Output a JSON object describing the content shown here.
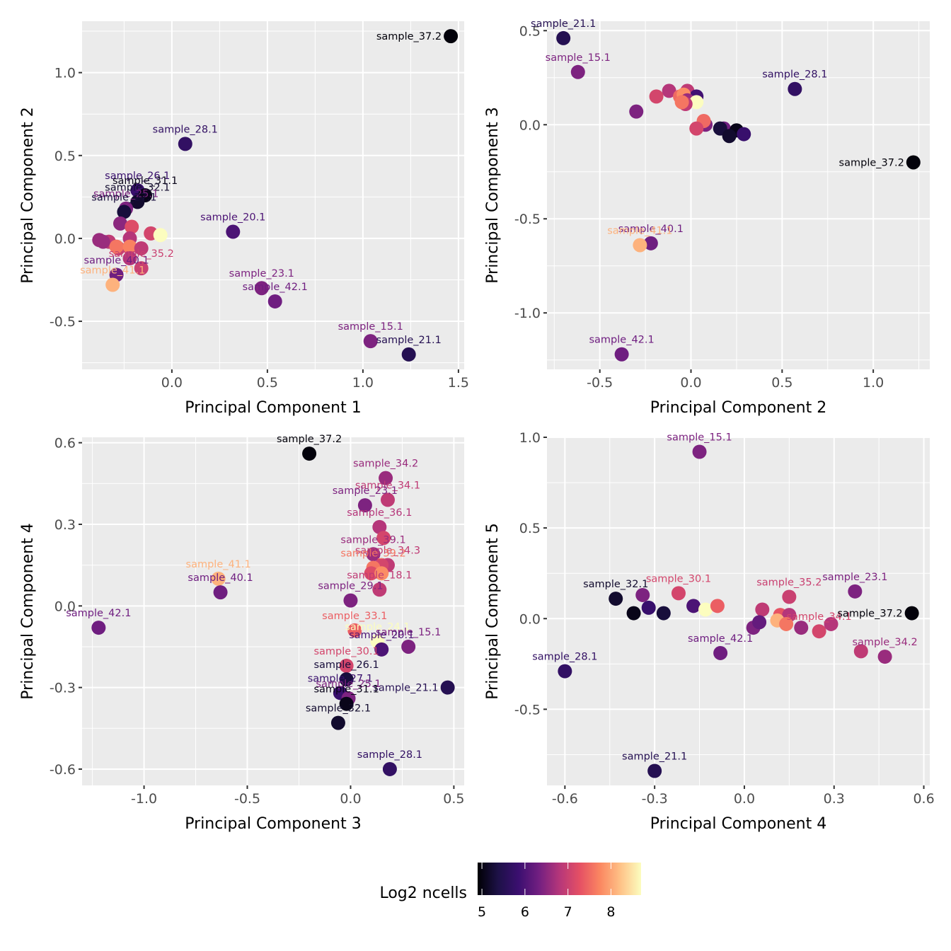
{
  "figure": {
    "legend": {
      "title": "Log2 ncells",
      "type": "colorbar",
      "palette": "magma",
      "range": [
        4.9,
        8.7
      ],
      "breaks": [
        5,
        6,
        7,
        8
      ],
      "break_labels": [
        "5",
        "6",
        "7",
        "8"
      ],
      "placement": "bottom",
      "stops": [
        "#000004",
        "#1d1147",
        "#3b0f70",
        "#721f81",
        "#b5367a",
        "#e55064",
        "#fb8761",
        "#fec287",
        "#fcfdbf"
      ]
    },
    "theme": {
      "panel_background": "#ebebeb",
      "grid_color": "#ffffff",
      "tick_color": "#333333"
    }
  },
  "chart_data": [
    {
      "type": "scatter",
      "title": "",
      "xlabel": "Principal Component 1",
      "ylabel": "Principal Component 2",
      "xlim": [
        -0.47,
        1.53
      ],
      "ylim": [
        -0.79,
        1.31
      ],
      "xticks": [
        0.0,
        0.5,
        1.0,
        1.5
      ],
      "xtick_labels": [
        "0.0",
        "0.5",
        "1.0",
        "1.5"
      ],
      "yticks": [
        -0.5,
        0.0,
        0.5,
        1.0
      ],
      "ytick_labels": [
        "-0.5",
        "0.0",
        "0.5",
        "1.0"
      ],
      "grid": true,
      "points": [
        {
          "x": 1.46,
          "y": 1.22,
          "c": 4.95,
          "label": "sample_37.2"
        },
        {
          "x": 0.07,
          "y": 0.57,
          "c": 5.7,
          "label": "sample_28.1"
        },
        {
          "x": -0.18,
          "y": 0.29,
          "c": 5.8,
          "label": "sample_26.1"
        },
        {
          "x": -0.14,
          "y": 0.26,
          "c": 5.05,
          "label": "sample_31.1"
        },
        {
          "x": -0.18,
          "y": 0.22,
          "c": 5.2,
          "label": "sample_32.1"
        },
        {
          "x": -0.24,
          "y": 0.18,
          "c": 6.4,
          "label": "sample_25.1"
        },
        {
          "x": -0.25,
          "y": 0.16,
          "c": 5.3,
          "label": "sample_27.1"
        },
        {
          "x": -0.27,
          "y": 0.09,
          "c": 6.5,
          "label": ""
        },
        {
          "x": -0.21,
          "y": 0.07,
          "c": 7.2,
          "label": ""
        },
        {
          "x": -0.11,
          "y": 0.03,
          "c": 7.1,
          "label": ""
        },
        {
          "x": -0.06,
          "y": 0.02,
          "c": 8.7,
          "label": ""
        },
        {
          "x": 0.32,
          "y": 0.04,
          "c": 6.0,
          "label": "sample_20.1"
        },
        {
          "x": -0.38,
          "y": -0.01,
          "c": 6.6,
          "label": ""
        },
        {
          "x": -0.33,
          "y": -0.02,
          "c": 6.9,
          "label": ""
        },
        {
          "x": -0.36,
          "y": -0.02,
          "c": 6.6,
          "label": ""
        },
        {
          "x": -0.22,
          "y": 0.0,
          "c": 6.8,
          "label": ""
        },
        {
          "x": -0.28,
          "y": -0.06,
          "c": 7.0,
          "label": ""
        },
        {
          "x": -0.29,
          "y": -0.05,
          "c": 7.6,
          "label": ""
        },
        {
          "x": -0.22,
          "y": -0.05,
          "c": 7.7,
          "label": ""
        },
        {
          "x": -0.16,
          "y": -0.06,
          "c": 6.9,
          "label": ""
        },
        {
          "x": -0.22,
          "y": -0.12,
          "c": 6.8,
          "label": ""
        },
        {
          "x": -0.29,
          "y": -0.22,
          "c": 6.3,
          "label": "sample_40.1"
        },
        {
          "x": -0.16,
          "y": -0.18,
          "c": 7.0,
          "label": "sample_35.2"
        },
        {
          "x": -0.31,
          "y": -0.28,
          "c": 8.1,
          "label": "sample_41.1"
        },
        {
          "x": 0.47,
          "y": -0.3,
          "c": 6.4,
          "label": "sample_23.1"
        },
        {
          "x": 0.54,
          "y": -0.38,
          "c": 6.3,
          "label": "sample_42.1"
        },
        {
          "x": 1.04,
          "y": -0.62,
          "c": 6.4,
          "label": "sample_15.1"
        },
        {
          "x": 1.24,
          "y": -0.7,
          "c": 5.5,
          "label": "sample_21.1"
        }
      ]
    },
    {
      "type": "scatter",
      "title": "",
      "xlabel": "Principal Component 2",
      "ylabel": "Principal Component 3",
      "xlim": [
        -0.79,
        1.31
      ],
      "ylim": [
        -1.3,
        0.55
      ],
      "xticks": [
        -0.5,
        0.0,
        0.5,
        1.0
      ],
      "xtick_labels": [
        "-0.5",
        "0.0",
        "0.5",
        "1.0"
      ],
      "yticks": [
        -1.0,
        -0.5,
        0.0,
        0.5
      ],
      "ytick_labels": [
        "-1.0",
        "-0.5",
        "0.0",
        "0.5"
      ],
      "grid": true,
      "points": [
        {
          "x": -0.7,
          "y": 0.46,
          "c": 5.5,
          "label": "sample_21.1"
        },
        {
          "x": -0.62,
          "y": 0.28,
          "c": 6.4,
          "label": "sample_15.1"
        },
        {
          "x": 0.57,
          "y": 0.19,
          "c": 5.7,
          "label": "sample_28.1"
        },
        {
          "x": -0.12,
          "y": 0.18,
          "c": 6.8,
          "label": ""
        },
        {
          "x": -0.19,
          "y": 0.15,
          "c": 7.1,
          "label": ""
        },
        {
          "x": -0.02,
          "y": 0.18,
          "c": 6.9,
          "label": ""
        },
        {
          "x": 0.03,
          "y": 0.15,
          "c": 5.9,
          "label": ""
        },
        {
          "x": -0.06,
          "y": 0.15,
          "c": 7.5,
          "label": ""
        },
        {
          "x": -0.04,
          "y": 0.16,
          "c": 7.8,
          "label": ""
        },
        {
          "x": -0.02,
          "y": 0.13,
          "c": 6.6,
          "label": ""
        },
        {
          "x": 0.03,
          "y": 0.12,
          "c": 8.7,
          "label": ""
        },
        {
          "x": -0.03,
          "y": 0.11,
          "c": 6.9,
          "label": ""
        },
        {
          "x": -0.05,
          "y": 0.12,
          "c": 7.6,
          "label": ""
        },
        {
          "x": -0.3,
          "y": 0.07,
          "c": 6.4,
          "label": ""
        },
        {
          "x": 0.08,
          "y": 0.0,
          "c": 6.4,
          "label": ""
        },
        {
          "x": 0.07,
          "y": 0.02,
          "c": 7.5,
          "label": ""
        },
        {
          "x": 0.03,
          "y": -0.02,
          "c": 7.1,
          "label": ""
        },
        {
          "x": 0.18,
          "y": -0.02,
          "c": 6.3,
          "label": ""
        },
        {
          "x": 0.16,
          "y": -0.02,
          "c": 5.3,
          "label": ""
        },
        {
          "x": 0.25,
          "y": -0.03,
          "c": 5.05,
          "label": ""
        },
        {
          "x": 0.21,
          "y": -0.06,
          "c": 5.2,
          "label": ""
        },
        {
          "x": 0.29,
          "y": -0.05,
          "c": 5.8,
          "label": ""
        },
        {
          "x": 1.22,
          "y": -0.2,
          "c": 4.95,
          "label": "sample_37.2"
        },
        {
          "x": -0.22,
          "y": -0.63,
          "c": 6.3,
          "label": "sample_40.1"
        },
        {
          "x": -0.28,
          "y": -0.64,
          "c": 8.1,
          "label": "sample_41.1"
        },
        {
          "x": -0.38,
          "y": -1.22,
          "c": 6.3,
          "label": "sample_42.1"
        }
      ]
    },
    {
      "type": "scatter",
      "title": "",
      "xlabel": "Principal Component 3",
      "ylabel": "Principal Component 4",
      "xlim": [
        -1.3,
        0.55
      ],
      "ylim": [
        -0.66,
        0.62
      ],
      "xticks": [
        -1.0,
        -0.5,
        0.0,
        0.5
      ],
      "xtick_labels": [
        "-1.0",
        "-0.5",
        "0.0",
        "0.5"
      ],
      "yticks": [
        -0.6,
        -0.3,
        0.0,
        0.3,
        0.6
      ],
      "ytick_labels": [
        "-0.6",
        "-0.3",
        "0.0",
        "0.3",
        "0.6"
      ],
      "grid": true,
      "points": [
        {
          "x": -0.2,
          "y": 0.56,
          "c": 4.95,
          "label": "sample_37.2"
        },
        {
          "x": 0.17,
          "y": 0.47,
          "c": 6.6,
          "label": "sample_34.2"
        },
        {
          "x": 0.18,
          "y": 0.39,
          "c": 6.9,
          "label": "sample_34.1"
        },
        {
          "x": 0.07,
          "y": 0.37,
          "c": 6.4,
          "label": "sample_23.1"
        },
        {
          "x": 0.14,
          "y": 0.29,
          "c": 6.8,
          "label": "sample_36.1"
        },
        {
          "x": 0.16,
          "y": 0.25,
          "c": 7.1,
          "label": ""
        },
        {
          "x": 0.11,
          "y": 0.19,
          "c": 6.6,
          "label": "sample_39.1"
        },
        {
          "x": 0.18,
          "y": 0.15,
          "c": 6.9,
          "label": "sample_34.3"
        },
        {
          "x": 0.15,
          "y": 0.15,
          "c": 7.1,
          "label": ""
        },
        {
          "x": 0.11,
          "y": 0.14,
          "c": 7.6,
          "label": "sample_39.2"
        },
        {
          "x": 0.1,
          "y": 0.12,
          "c": 7.2,
          "label": ""
        },
        {
          "x": 0.15,
          "y": 0.12,
          "c": 7.8,
          "label": ""
        },
        {
          "x": 0.14,
          "y": 0.06,
          "c": 6.9,
          "label": "sample_18.1"
        },
        {
          "x": -0.64,
          "y": 0.1,
          "c": 8.1,
          "label": "sample_41.1"
        },
        {
          "x": -0.63,
          "y": 0.05,
          "c": 6.3,
          "label": "sample_40.1"
        },
        {
          "x": 0.0,
          "y": 0.02,
          "c": 6.4,
          "label": "sample_29.1"
        },
        {
          "x": -1.22,
          "y": -0.08,
          "c": 6.3,
          "label": "sample_42.1"
        },
        {
          "x": 0.02,
          "y": -0.09,
          "c": 7.4,
          "label": "sample_33.1"
        },
        {
          "x": 0.13,
          "y": -0.13,
          "c": 8.7,
          "label": "sample_24.1"
        },
        {
          "x": 0.28,
          "y": -0.15,
          "c": 6.4,
          "label": "sample_15.1"
        },
        {
          "x": 0.15,
          "y": -0.16,
          "c": 6.0,
          "label": "sample_20.1"
        },
        {
          "x": -0.02,
          "y": -0.22,
          "c": 7.1,
          "label": "sample_30.1"
        },
        {
          "x": -0.02,
          "y": -0.27,
          "c": 5.3,
          "label": "sample_26.1"
        },
        {
          "x": 0.47,
          "y": -0.3,
          "c": 5.5,
          "label": "sample_21.1"
        },
        {
          "x": -0.05,
          "y": -0.32,
          "c": 5.8,
          "label": "sample_27.1"
        },
        {
          "x": -0.01,
          "y": -0.34,
          "c": 6.4,
          "label": "sample_25.1"
        },
        {
          "x": -0.02,
          "y": -0.36,
          "c": 5.05,
          "label": "sample_31.1"
        },
        {
          "x": -0.06,
          "y": -0.43,
          "c": 5.2,
          "label": "sample_32.1"
        },
        {
          "x": 0.19,
          "y": -0.6,
          "c": 5.7,
          "label": "sample_28.1"
        }
      ]
    },
    {
      "type": "scatter",
      "title": "",
      "xlabel": "Principal Component 4",
      "ylabel": "Principal Component 5",
      "xlim": [
        -0.66,
        0.62
      ],
      "ylim": [
        -0.92,
        1.0
      ],
      "xticks": [
        -0.6,
        -0.3,
        0.0,
        0.3,
        0.6
      ],
      "xtick_labels": [
        "-0.6",
        "-0.3",
        "0.0",
        "0.3",
        "0.6"
      ],
      "yticks": [
        -0.5,
        0.0,
        0.5,
        1.0
      ],
      "ytick_labels": [
        "-0.5",
        "0.0",
        "0.5",
        "1.0"
      ],
      "grid": true,
      "points": [
        {
          "x": -0.15,
          "y": 0.92,
          "c": 6.4,
          "label": "sample_15.1"
        },
        {
          "x": -0.43,
          "y": 0.11,
          "c": 5.2,
          "label": "sample_32.1"
        },
        {
          "x": -0.34,
          "y": 0.13,
          "c": 6.4,
          "label": ""
        },
        {
          "x": -0.37,
          "y": 0.03,
          "c": 5.05,
          "label": ""
        },
        {
          "x": -0.32,
          "y": 0.06,
          "c": 5.8,
          "label": ""
        },
        {
          "x": -0.27,
          "y": 0.03,
          "c": 5.3,
          "label": ""
        },
        {
          "x": -0.22,
          "y": 0.14,
          "c": 7.1,
          "label": "sample_30.1"
        },
        {
          "x": -0.17,
          "y": 0.07,
          "c": 6.0,
          "label": ""
        },
        {
          "x": -0.13,
          "y": 0.05,
          "c": 8.7,
          "label": ""
        },
        {
          "x": -0.09,
          "y": 0.07,
          "c": 7.4,
          "label": ""
        },
        {
          "x": -0.08,
          "y": -0.19,
          "c": 6.3,
          "label": "sample_42.1"
        },
        {
          "x": -0.6,
          "y": -0.29,
          "c": 5.7,
          "label": "sample_28.1"
        },
        {
          "x": -0.3,
          "y": -0.84,
          "c": 5.5,
          "label": "sample_21.1"
        },
        {
          "x": 0.06,
          "y": 0.05,
          "c": 6.9,
          "label": ""
        },
        {
          "x": 0.15,
          "y": 0.12,
          "c": 7.0,
          "label": "sample_35.2"
        },
        {
          "x": 0.12,
          "y": 0.02,
          "c": 7.3,
          "label": ""
        },
        {
          "x": 0.15,
          "y": 0.02,
          "c": 6.8,
          "label": ""
        },
        {
          "x": 0.03,
          "y": -0.05,
          "c": 6.4,
          "label": ""
        },
        {
          "x": 0.05,
          "y": -0.02,
          "c": 6.2,
          "label": ""
        },
        {
          "x": 0.11,
          "y": -0.01,
          "c": 8.1,
          "label": ""
        },
        {
          "x": 0.14,
          "y": -0.03,
          "c": 7.6,
          "label": ""
        },
        {
          "x": 0.19,
          "y": -0.05,
          "c": 6.6,
          "label": ""
        },
        {
          "x": 0.25,
          "y": -0.07,
          "c": 7.1,
          "label": "sample_34.1"
        },
        {
          "x": 0.29,
          "y": -0.03,
          "c": 6.8,
          "label": ""
        },
        {
          "x": 0.37,
          "y": 0.15,
          "c": 6.4,
          "label": "sample_23.1"
        },
        {
          "x": 0.56,
          "y": 0.03,
          "c": 4.95,
          "label": "sample_37.2"
        },
        {
          "x": 0.39,
          "y": -0.18,
          "c": 6.9,
          "label": ""
        },
        {
          "x": 0.47,
          "y": -0.21,
          "c": 6.6,
          "label": "sample_34.2"
        }
      ]
    }
  ]
}
